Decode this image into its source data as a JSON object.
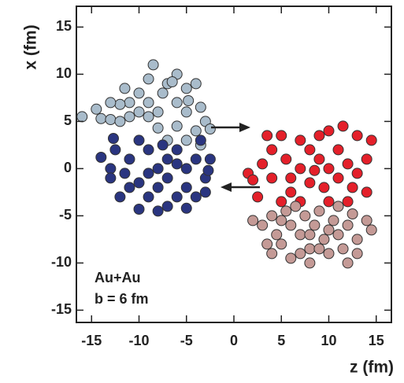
{
  "chart_data": {
    "type": "scatter",
    "xlabel": "z (fm)",
    "ylabel": "x (fm)",
    "annotations": [
      "Au+Au",
      "b = 6 fm"
    ],
    "xlim": [
      -16.6,
      16.6
    ],
    "ylim": [
      -16.3,
      17.2
    ],
    "xticks": [
      -15,
      -10,
      -5,
      0,
      5,
      10,
      15
    ],
    "yticks": [
      -15,
      -10,
      -5,
      0,
      5,
      10,
      15
    ],
    "grid": false,
    "series": [
      {
        "color": "#a9bccb",
        "x": [
          -16,
          -14,
          -13,
          -12,
          -11,
          -9,
          -8.5,
          -7,
          -6,
          -7.5,
          -5,
          -4,
          -3.5,
          -3,
          -5,
          -6,
          -9,
          -10,
          -11,
          -12,
          -13,
          -8,
          -10,
          -4,
          -2.5,
          -6,
          -8,
          -7,
          -5,
          -3.5,
          -9,
          -14.5,
          -6.5,
          -11.5,
          -4.8
        ],
        "values": [
          5.5,
          5.3,
          5.2,
          5,
          5.5,
          9.5,
          11,
          9,
          10,
          8,
          8.5,
          9,
          6.5,
          5,
          6,
          7,
          7,
          6,
          7,
          6.8,
          7,
          6,
          8,
          4,
          4.2,
          4.5,
          4.3,
          3,
          3,
          2.5,
          5.5,
          6.3,
          9.2,
          8.5,
          7.2
        ]
      },
      {
        "color": "#2a3580",
        "x": [
          -14,
          -13,
          -12.5,
          -13,
          -11,
          -10,
          -11.5,
          -9,
          -8,
          -7,
          -6,
          -5,
          -4,
          -3,
          -2.5,
          -10,
          -9,
          -8,
          -7,
          -6,
          -5,
          -4,
          -3,
          -11,
          -12,
          -10,
          -7,
          -5,
          -8,
          -6,
          -9,
          -12.7,
          -3.5,
          -2.7,
          -7.5
        ],
        "values": [
          1.2,
          0,
          2,
          -1,
          1,
          3,
          -0.5,
          2,
          0,
          1,
          2,
          0,
          1,
          -1,
          1,
          -1.5,
          -3,
          -2,
          -1,
          -3,
          -2,
          -3,
          -2.5,
          -2,
          -3,
          -4.3,
          -4,
          -4.2,
          -4.5,
          0.5,
          -0.5,
          3.2,
          3,
          -0.2,
          2.5
        ]
      },
      {
        "color": "#e4202a",
        "x": [
          1.5,
          2,
          2.5,
          3,
          4,
          4,
          3.5,
          5,
          5.5,
          6,
          6,
          7,
          7,
          8,
          8,
          9,
          9,
          9.5,
          10,
          10,
          11,
          11,
          11.5,
          12,
          12.5,
          13,
          13,
          14,
          14,
          14.5,
          5,
          7,
          10,
          12,
          8.5
        ],
        "values": [
          -0.5,
          -1.2,
          -3,
          0.5,
          -1,
          2,
          3.5,
          3.5,
          1,
          -1,
          -2.5,
          3,
          0,
          2,
          -1.5,
          3.5,
          1,
          -2,
          0,
          4,
          2,
          -1,
          4.5,
          0.5,
          -2,
          3.5,
          -0.5,
          1,
          -2.5,
          3,
          -3.5,
          -3.5,
          -3.5,
          -3.5,
          -0.2
        ]
      },
      {
        "color": "#c49a96",
        "x": [
          2,
          3,
          4,
          4.5,
          5,
          5.5,
          6,
          6,
          7,
          7.5,
          8,
          8.5,
          9,
          9.5,
          10,
          10.5,
          11,
          11.5,
          12,
          12.5,
          13,
          13,
          14,
          14.5,
          7,
          8,
          3.5,
          5,
          9,
          11,
          6.5,
          12,
          10,
          4,
          8
        ],
        "values": [
          -5.5,
          -6,
          -5,
          -7,
          -8,
          -4.5,
          -6,
          -9.5,
          -7,
          -5,
          -8.5,
          -6,
          -4.5,
          -7.5,
          -9,
          -5.5,
          -7,
          -8.5,
          -6,
          -4.8,
          -7.5,
          -9,
          -5.5,
          -6.5,
          -9,
          -10,
          -8,
          -5.5,
          -8.5,
          -4,
          -4,
          -10,
          -6.5,
          -9,
          -7
        ]
      }
    ]
  }
}
